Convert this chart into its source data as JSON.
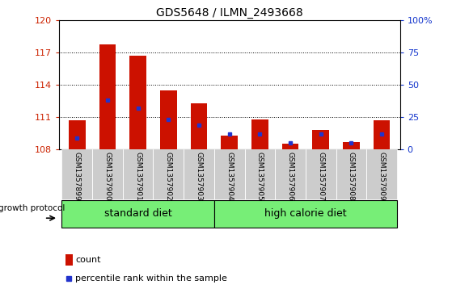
{
  "title": "GDS5648 / ILMN_2493668",
  "samples": [
    "GSM1357899",
    "GSM1357900",
    "GSM1357901",
    "GSM1357902",
    "GSM1357903",
    "GSM1357904",
    "GSM1357905",
    "GSM1357906",
    "GSM1357907",
    "GSM1357908",
    "GSM1357909"
  ],
  "count_values": [
    110.7,
    117.8,
    116.7,
    113.5,
    112.3,
    109.3,
    110.8,
    108.5,
    109.8,
    108.7,
    110.7
  ],
  "percentile_values": [
    9,
    38,
    32,
    23,
    19,
    12,
    12,
    5,
    12,
    5,
    12
  ],
  "ylim_left": [
    108,
    120
  ],
  "ylim_right": [
    0,
    100
  ],
  "yticks_left": [
    108,
    111,
    114,
    117,
    120
  ],
  "yticks_right": [
    0,
    25,
    50,
    75,
    100
  ],
  "bar_color": "#cc1100",
  "percentile_color": "#2233cc",
  "bar_width": 0.55,
  "group1_label": "standard diet",
  "group2_label": "high calorie diet",
  "group1_indices": [
    0,
    1,
    2,
    3,
    4
  ],
  "group2_indices": [
    5,
    6,
    7,
    8,
    9,
    10
  ],
  "group_color": "#77ee77",
  "group_label_prefix": "growth protocol",
  "legend_count_label": "count",
  "legend_percentile_label": "percentile rank within the sample",
  "left_tick_color": "#cc2200",
  "right_tick_color": "#1133cc",
  "hline_positions": [
    111,
    114,
    117
  ],
  "xticklabel_bg": "#cccccc",
  "xtick_label_fontsize": 7,
  "ytick_fontsize": 8
}
